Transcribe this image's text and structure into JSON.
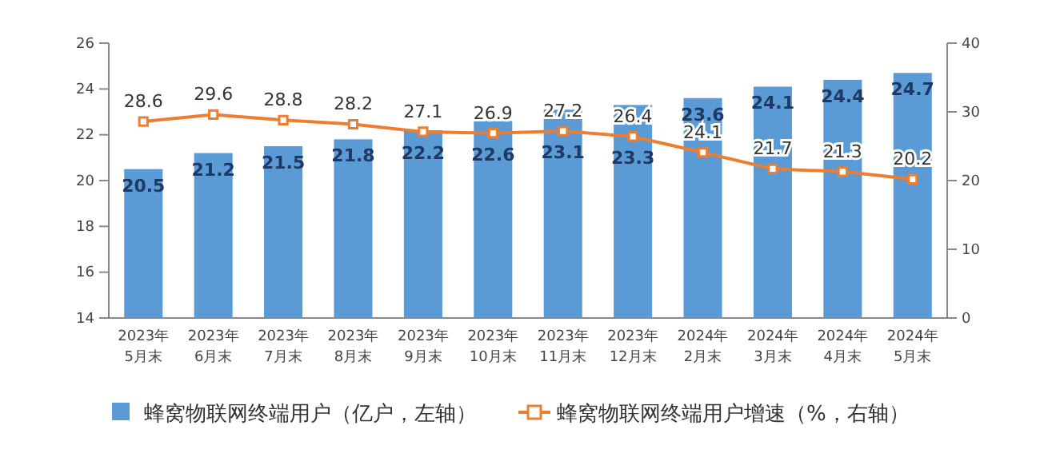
{
  "chart_data": {
    "type": "bar",
    "categories": [
      "2023年\n5月末",
      "2023年\n6月末",
      "2023年\n7月末",
      "2023年\n8月末",
      "2023年\n9月末",
      "2023年\n10月末",
      "2023年\n11月末",
      "2023年\n12月末",
      "2024年\n2月末",
      "2024年\n3月末",
      "2024年\n4月末",
      "2024年\n5月末"
    ],
    "series": [
      {
        "name": "蜂窝物联网终端用户（亿户，左轴）",
        "color": "#5b9bd5",
        "values": [
          20.5,
          21.2,
          21.5,
          21.8,
          22.2,
          22.6,
          23.1,
          23.3,
          23.6,
          24.1,
          24.4,
          24.7
        ]
      },
      {
        "name": "蜂窝物联网终端用户增速（%，右轴）",
        "type": "line",
        "axis": "y2",
        "color": "#ed7d31",
        "values": [
          28.6,
          29.6,
          28.8,
          28.2,
          27.1,
          26.9,
          27.2,
          26.4,
          24.1,
          21.7,
          21.3,
          20.2
        ]
      }
    ],
    "ylim": [
      14,
      26
    ],
    "yticks": [
      14,
      16,
      18,
      20,
      22,
      24,
      26
    ],
    "y2lim": [
      0,
      40
    ],
    "y2ticks": [
      0,
      10,
      20,
      30,
      40
    ],
    "data_labels": true,
    "legend": "bottom",
    "marker": "square",
    "grid": false
  }
}
